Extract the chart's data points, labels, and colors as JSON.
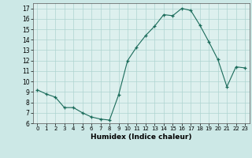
{
  "x": [
    0,
    1,
    2,
    3,
    4,
    5,
    6,
    7,
    8,
    9,
    10,
    11,
    12,
    13,
    14,
    15,
    16,
    17,
    18,
    19,
    20,
    21,
    22,
    23
  ],
  "y": [
    9.2,
    8.8,
    8.5,
    7.5,
    7.5,
    7.0,
    6.6,
    6.4,
    6.3,
    8.7,
    12.0,
    13.3,
    14.4,
    15.3,
    16.4,
    16.3,
    17.0,
    16.8,
    15.4,
    13.8,
    12.1,
    9.5,
    11.4,
    11.3
  ],
  "xlabel": "Humidex (Indice chaleur)",
  "xlim": [
    -0.5,
    23.5
  ],
  "ylim": [
    6,
    17.5
  ],
  "yticks": [
    6,
    7,
    8,
    9,
    10,
    11,
    12,
    13,
    14,
    15,
    16,
    17
  ],
  "xticks": [
    0,
    1,
    2,
    3,
    4,
    5,
    6,
    7,
    8,
    9,
    10,
    11,
    12,
    13,
    14,
    15,
    16,
    17,
    18,
    19,
    20,
    21,
    22,
    23
  ],
  "line_color": "#1a6b5a",
  "marker": "+",
  "bg_color": "#cce8e6",
  "grid_color": "#afd4d0",
  "axis_bg": "#ddf0ee"
}
